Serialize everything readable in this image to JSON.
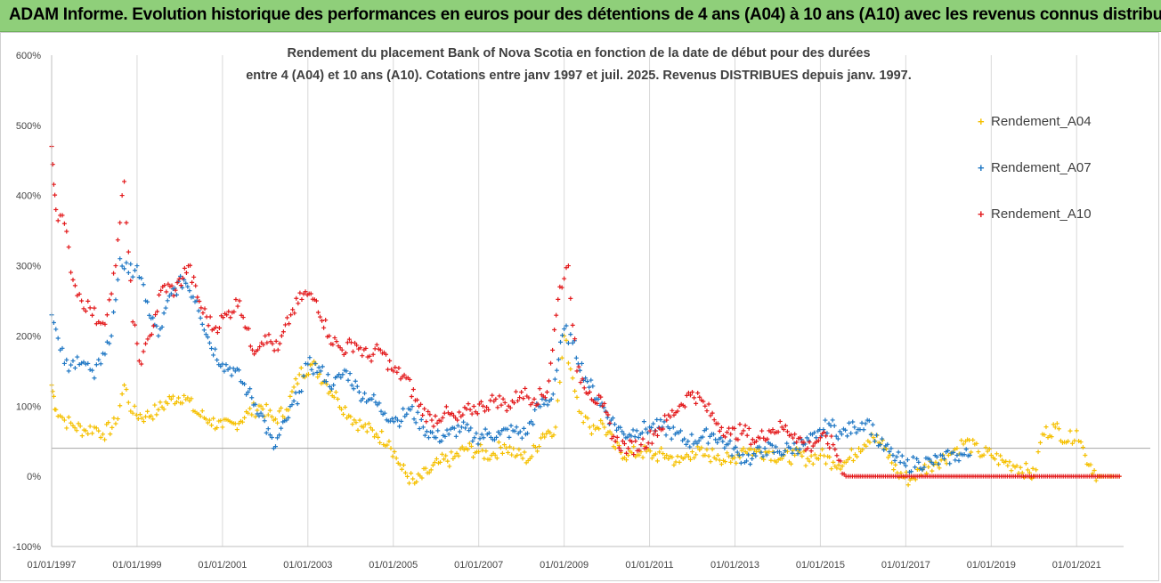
{
  "banner": {
    "title": "ADAM Informe. Evolution historique des performances en euros pour des détentions de 4 ans (A04) à 10 ans (A10) avec les revenus connus distribués"
  },
  "colors": {
    "banner_bg": "#8fcf7a",
    "A04": "#f5c000",
    "A07": "#1f77c4",
    "A10": "#e31a1c",
    "grid": "#d9d9d9"
  },
  "chart_data": {
    "type": "scatter",
    "title_line1": "Rendement du placement Bank of Nova Scotia en fonction de la date de début pour des durées",
    "title_line2": "entre 4 (A04) et 10 ans (A10). Cotations entre janv 1997 et juil. 2025. Revenus DISTRIBUES depuis janv. 1997.",
    "xlabel": "",
    "ylabel": "",
    "ylim": [
      -100,
      600
    ],
    "y_ticks": [
      "-100%",
      "0%",
      "100%",
      "200%",
      "300%",
      "400%",
      "500%",
      "600%"
    ],
    "y_tick_values": [
      -100,
      0,
      100,
      200,
      300,
      400,
      500,
      600
    ],
    "x_range_years": [
      1997.0,
      2022.1
    ],
    "x_ticks": [
      "01/01/1997",
      "01/01/1999",
      "01/01/2001",
      "01/01/2003",
      "01/01/2005",
      "01/01/2007",
      "01/01/2009",
      "01/01/2011",
      "01/01/2013",
      "01/01/2015",
      "01/01/2017",
      "01/01/2019",
      "01/01/2021"
    ],
    "x_tick_values": [
      1997,
      1999,
      2001,
      2003,
      2005,
      2007,
      2009,
      2011,
      2013,
      2015,
      2017,
      2019,
      2021
    ],
    "reference_line_value": 40,
    "grid": "vertical",
    "legend_position": "right",
    "series": [
      {
        "name": "Rendement_A04",
        "color": "#f5c000",
        "x": [
          1997.0,
          1997.1,
          1997.3,
          1997.5,
          1997.8,
          1998.0,
          1998.2,
          1998.5,
          1998.7,
          1998.9,
          1999.2,
          1999.5,
          1999.8,
          2000.1,
          2000.4,
          2000.7,
          2001.0,
          2001.3,
          2001.6,
          2001.9,
          2002.2,
          2002.5,
          2002.8,
          2003.1,
          2003.4,
          2003.7,
          2004.0,
          2004.3,
          2004.6,
          2004.9,
          2005.2,
          2005.5,
          2005.8,
          2006.1,
          2006.4,
          2006.7,
          2007.0,
          2007.3,
          2007.6,
          2007.9,
          2008.2,
          2008.5,
          2008.8,
          2009.0,
          2009.2,
          2009.4,
          2009.6,
          2009.9,
          2010.2,
          2010.5,
          2010.8,
          2011.1,
          2011.4,
          2011.7,
          2012.0,
          2012.3,
          2012.6,
          2012.9,
          2013.2,
          2013.5,
          2013.8,
          2014.1,
          2014.4,
          2014.7,
          2015.0,
          2015.3,
          2015.6,
          2015.9,
          2016.2,
          2016.5,
          2016.8,
          2017.1,
          2017.4,
          2017.7,
          2018.0,
          2018.2,
          2018.4,
          2018.7,
          2019.0,
          2019.3,
          2019.6,
          2019.9,
          2020.0,
          2020.2,
          2020.5,
          2020.8,
          2021.0,
          2021.2,
          2021.5,
          2021.8,
          2022.0
        ],
        "values": [
          130,
          95,
          80,
          72,
          65,
          70,
          60,
          75,
          130,
          90,
          85,
          95,
          110,
          115,
          90,
          80,
          70,
          75,
          90,
          100,
          80,
          95,
          145,
          160,
          135,
          110,
          85,
          70,
          60,
          50,
          10,
          -10,
          5,
          20,
          25,
          40,
          35,
          30,
          45,
          30,
          25,
          60,
          70,
          200,
          140,
          90,
          70,
          75,
          40,
          30,
          35,
          30,
          30,
          20,
          35,
          30,
          30,
          20,
          40,
          35,
          35,
          25,
          30,
          25,
          30,
          20,
          20,
          40,
          60,
          40,
          5,
          -5,
          10,
          20,
          30,
          40,
          50,
          35,
          30,
          20,
          15,
          5,
          0,
          60,
          70,
          50,
          65,
          30,
          0,
          0,
          0
        ]
      },
      {
        "name": "Rendement_A07",
        "color": "#1f77c4",
        "x": [
          1997.0,
          1997.2,
          1997.4,
          1997.6,
          1997.8,
          1998.0,
          1998.2,
          1998.4,
          1998.6,
          1998.8,
          1999.0,
          1999.2,
          1999.5,
          1999.8,
          2000.1,
          2000.4,
          2000.7,
          2001.0,
          2001.3,
          2001.6,
          2001.9,
          2002.2,
          2002.5,
          2002.8,
          2003.0,
          2003.3,
          2003.6,
          2003.9,
          2004.2,
          2004.5,
          2004.8,
          2005.1,
          2005.4,
          2005.7,
          2006.0,
          2006.3,
          2006.6,
          2006.9,
          2007.2,
          2007.5,
          2007.8,
          2008.1,
          2008.4,
          2008.7,
          2009.0,
          2009.2,
          2009.5,
          2009.8,
          2010.1,
          2010.4,
          2010.7,
          2011.0,
          2011.3,
          2011.6,
          2011.9,
          2012.2,
          2012.5,
          2012.8,
          2013.1,
          2013.4,
          2013.7,
          2014.0,
          2014.3,
          2014.6,
          2014.9,
          2015.2,
          2015.5,
          2015.8,
          2016.1,
          2016.4,
          2016.7,
          2017.0,
          2017.3,
          2017.6,
          2017.9,
          2018.2,
          2018.5
        ],
        "values": [
          230,
          180,
          150,
          170,
          160,
          140,
          175,
          200,
          310,
          290,
          300,
          250,
          200,
          260,
          280,
          250,
          190,
          160,
          150,
          120,
          90,
          40,
          80,
          120,
          160,
          150,
          130,
          150,
          120,
          110,
          90,
          80,
          95,
          70,
          55,
          60,
          70,
          55,
          60,
          60,
          65,
          60,
          100,
          110,
          210,
          190,
          140,
          110,
          80,
          60,
          65,
          70,
          70,
          60,
          50,
          55,
          60,
          45,
          30,
          25,
          40,
          35,
          40,
          45,
          55,
          75,
          60,
          70,
          80,
          45,
          30,
          15,
          20,
          20,
          25,
          30,
          30
        ]
      },
      {
        "name": "Rendement_A10",
        "color": "#e31a1c",
        "x": [
          1997.0,
          1997.1,
          1997.3,
          1997.5,
          1997.7,
          1997.9,
          1998.1,
          1998.3,
          1998.5,
          1998.7,
          1998.9,
          1999.1,
          1999.3,
          1999.6,
          1999.9,
          2000.2,
          2000.5,
          2000.8,
          2001.1,
          2001.4,
          2001.7,
          2002.0,
          2002.3,
          2002.6,
          2002.9,
          2003.2,
          2003.5,
          2003.8,
          2004.1,
          2004.4,
          2004.7,
          2005.0,
          2005.3,
          2005.6,
          2005.9,
          2006.2,
          2006.5,
          2006.8,
          2007.1,
          2007.4,
          2007.7,
          2008.0,
          2008.3,
          2008.6,
          2008.9,
          2009.1,
          2009.3,
          2009.6,
          2009.9,
          2010.2,
          2010.5,
          2010.8,
          2011.1,
          2011.4,
          2011.7,
          2012.0,
          2012.3,
          2012.6,
          2012.9,
          2013.2,
          2013.5,
          2013.8,
          2014.1,
          2014.4,
          2014.7,
          2015.0,
          2015.3,
          2015.6,
          2015.8,
          2016.2,
          2016.8,
          2017.5,
          2018.2,
          2019.0,
          2019.8,
          2020.5,
          2021.2,
          2022.0
        ],
        "values": [
          470,
          380,
          360,
          280,
          250,
          240,
          220,
          230,
          300,
          420,
          220,
          160,
          200,
          270,
          265,
          300,
          240,
          210,
          230,
          250,
          180,
          200,
          180,
          230,
          260,
          250,
          200,
          180,
          190,
          170,
          180,
          150,
          140,
          100,
          80,
          90,
          80,
          95,
          100,
          110,
          100,
          120,
          110,
          120,
          270,
          300,
          150,
          120,
          100,
          50,
          40,
          45,
          60,
          80,
          100,
          120,
          100,
          75,
          60,
          65,
          50,
          65,
          70,
          60,
          40,
          55,
          45,
          0,
          0,
          0,
          0,
          0,
          0,
          0,
          0,
          0,
          0,
          0
        ]
      }
    ]
  }
}
